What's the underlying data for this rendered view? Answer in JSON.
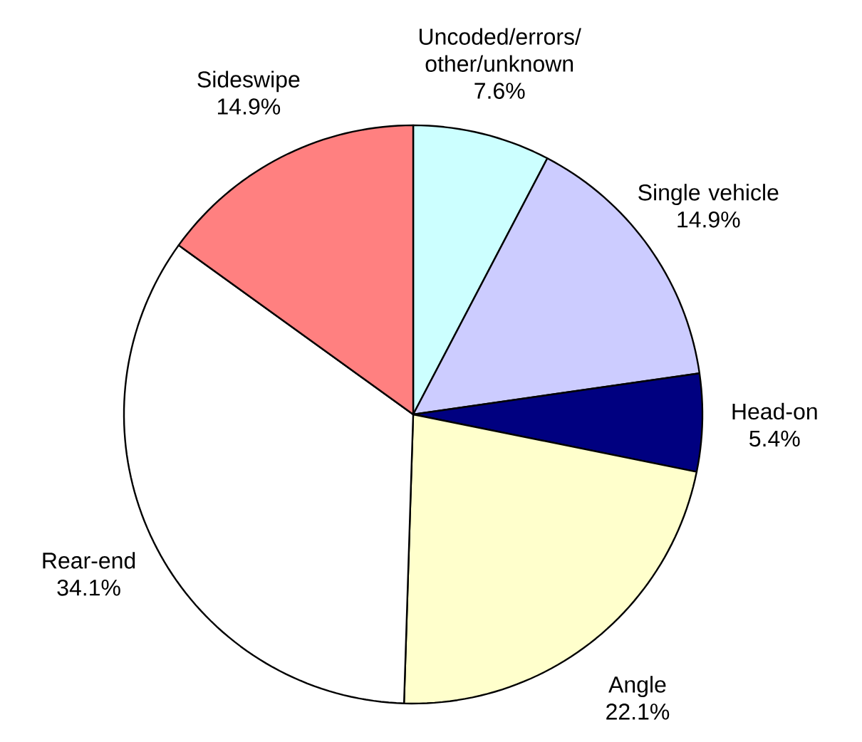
{
  "chart_data": {
    "type": "pie",
    "categories": [
      "Uncoded/errors/ other/unknown",
      "Single vehicle",
      "Head-on",
      "Angle",
      "Rear-end",
      "Sideswipe"
    ],
    "values": [
      7.6,
      14.9,
      5.4,
      22.1,
      34.1,
      14.9
    ],
    "value_labels": [
      "7.6%",
      "14.9%",
      "5.4%",
      "22.1%",
      "34.1%",
      "14.9%"
    ],
    "colors": [
      "#ccffff",
      "#ccccff",
      "#000080",
      "#ffffcc",
      "#ffffff",
      "#ff8080"
    ]
  }
}
